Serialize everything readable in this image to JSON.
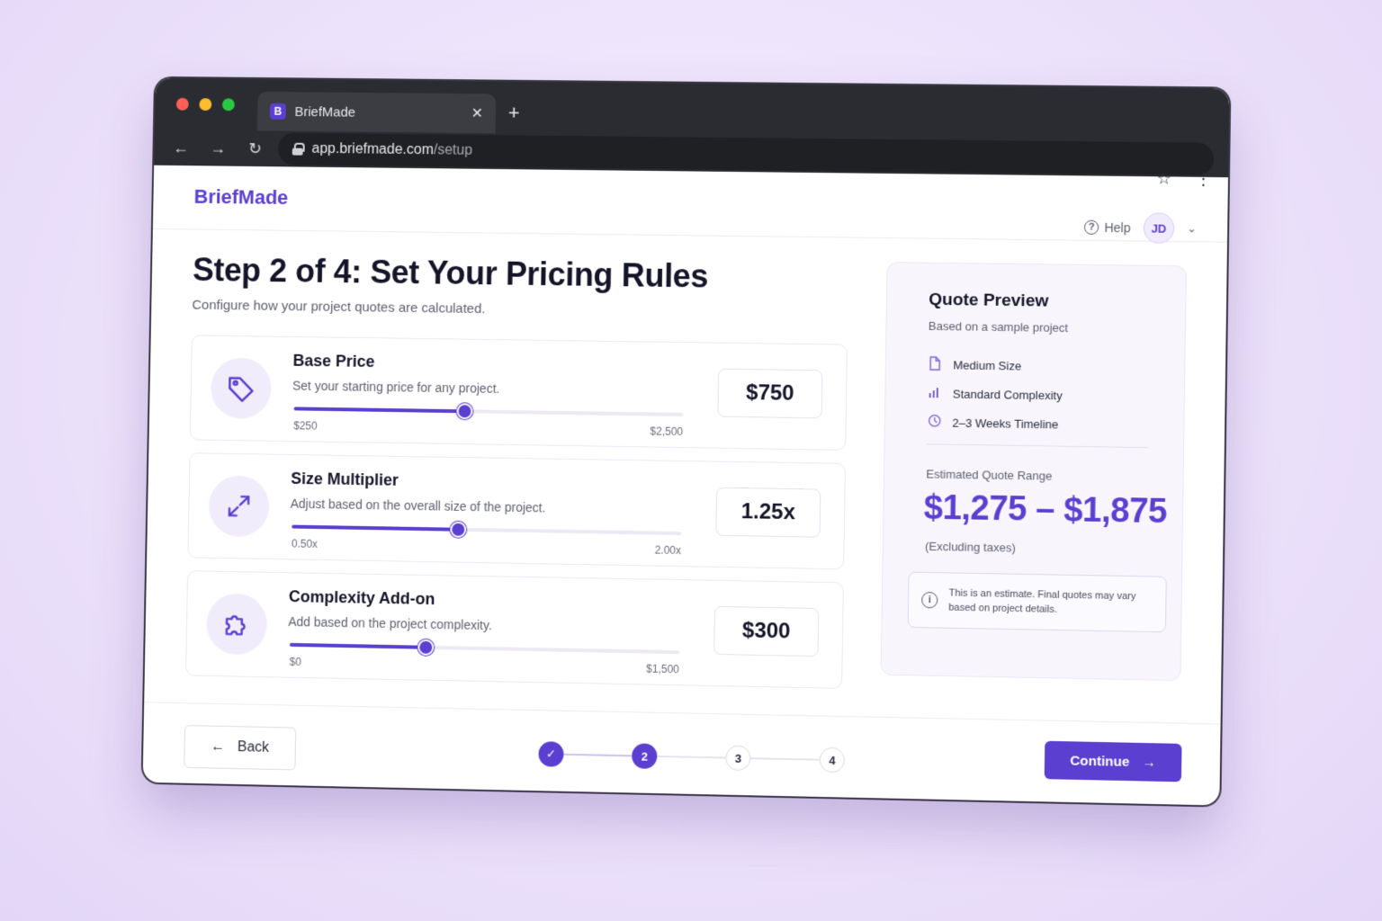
{
  "browser": {
    "tab_title": "BriefMade",
    "tab_favicon": "B",
    "url_host": "app.briefmade.com",
    "url_path": "/setup"
  },
  "header": {
    "brand": "BriefMade",
    "help_label": "Help",
    "avatar_initials": "JD"
  },
  "page": {
    "title": "Step 2 of 4: Set Your Pricing Rules",
    "subtitle": "Configure how your project quotes are calculated."
  },
  "rules": [
    {
      "title": "Base Price",
      "description": "Set your starting price for any project.",
      "min_label": "$250",
      "max_label": "$2,500",
      "value_label": "$750",
      "slider_fraction": 0.44,
      "icon": "tag-icon"
    },
    {
      "title": "Size Multiplier",
      "description": "Adjust based on the overall size of the project.",
      "min_label": "0.50x",
      "max_label": "2.00x",
      "value_label": "1.25x",
      "slider_fraction": 0.43,
      "icon": "expand-icon"
    },
    {
      "title": "Complexity Add-on",
      "description": "Add based on the project complexity.",
      "min_label": "$0",
      "max_label": "$1,500",
      "value_label": "$300",
      "slider_fraction": 0.35,
      "icon": "puzzle-icon"
    }
  ],
  "preview": {
    "title": "Quote Preview",
    "subtitle": "Based on a sample project",
    "items": [
      {
        "label": "Medium Size",
        "icon": "document-icon"
      },
      {
        "label": "Standard Complexity",
        "icon": "bar-chart-icon"
      },
      {
        "label": "2–3 Weeks Timeline",
        "icon": "clock-icon"
      }
    ],
    "range_label": "Estimated Quote Range",
    "range_value": "$1,275 – $1,875",
    "tax_note": "(Excluding taxes)",
    "note_line1": "This is an estimate. Final quotes may vary",
    "note_line2": "based on project details."
  },
  "footer": {
    "back_label": "Back",
    "continue_label": "Continue",
    "steps": [
      "✓",
      "2",
      "3",
      "4"
    ],
    "current_step": 2
  },
  "colors": {
    "accent": "#5b3fd0",
    "accent_soft": "#f1ecfb"
  }
}
